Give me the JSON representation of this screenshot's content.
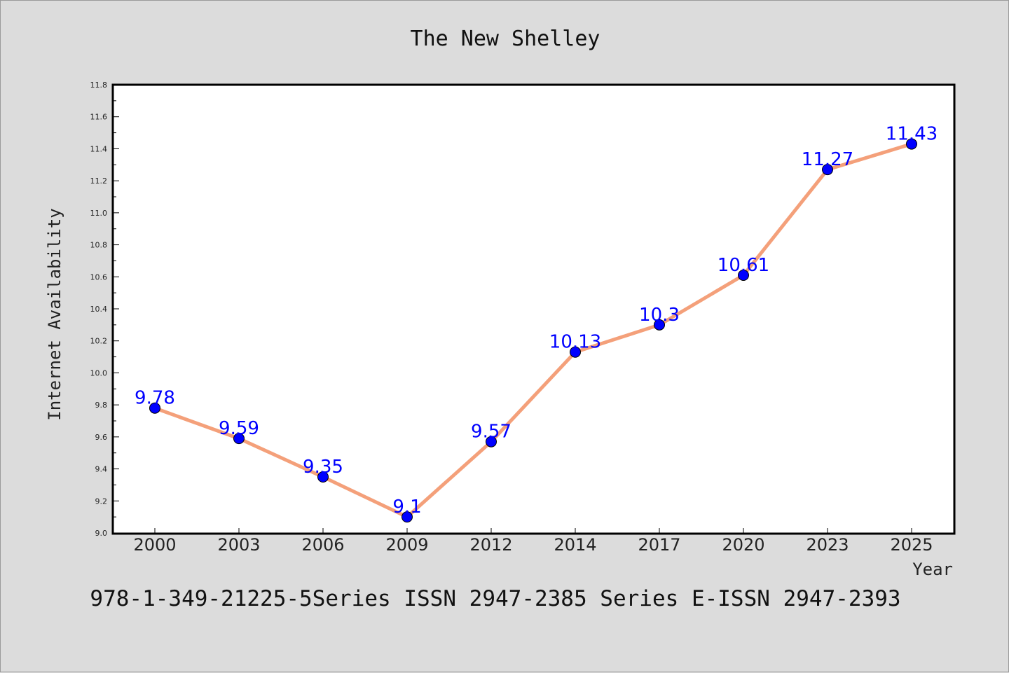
{
  "chart_data": {
    "type": "line",
    "title": "The New Shelley",
    "xlabel": "Year",
    "ylabel": "Internet Availability",
    "categories": [
      "2000",
      "2003",
      "2006",
      "2009",
      "2012",
      "2014",
      "2017",
      "2020",
      "2023",
      "2025"
    ],
    "series": [
      {
        "values": [
          9.78,
          9.59,
          9.35,
          9.1,
          9.57,
          10.13,
          10.3,
          10.61,
          11.27,
          11.43
        ],
        "labels": [
          "9.78",
          "9.59",
          "9.35",
          "9.1",
          "9.57",
          "10.13",
          "10.3",
          "10.61",
          "11.27",
          "11.43"
        ],
        "line_color": "#f4a07a",
        "marker_color": "#0000ff"
      }
    ],
    "ylim": [
      9.0,
      11.8
    ],
    "yticks": [
      "9.0",
      "9.2",
      "9.4",
      "9.6",
      "9.8",
      "10.0",
      "10.2",
      "10.4",
      "10.6",
      "10.8",
      "11.0",
      "11.2",
      "11.4",
      "11.6",
      "11.8"
    ],
    "grid": false,
    "legend": "none"
  },
  "footer": {
    "text": "978-1-349-21225-5Series ISSN 2947-2385 Series E-ISSN 2947-2393"
  },
  "colors": {
    "background": "#dcdcdc",
    "plot_background": "#ffffff",
    "line": "#f4a07a",
    "marker": "#0000ff",
    "data_label": "#0000ff"
  }
}
